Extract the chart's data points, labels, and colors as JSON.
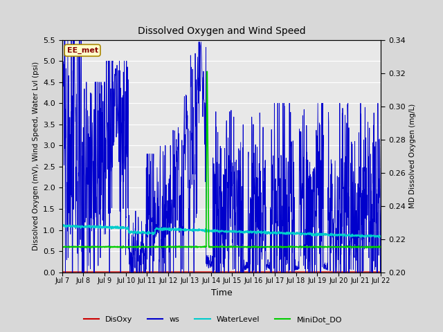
{
  "title": "Dissolved Oxygen and Wind Speed",
  "xlabel": "Time",
  "ylabel_left": "Dissolved Oxygen (mV), Wind Speed, Water Lvl (psi)",
  "ylabel_right": "MD Dissolved Oxygen (mg/L)",
  "ylim_left": [
    0.0,
    5.5
  ],
  "ylim_right": [
    0.2,
    0.34
  ],
  "annotation_text": "EE_met",
  "background_color": "#d8d8d8",
  "plot_bg_color": "#e8e8e8",
  "colors": {
    "DisOxy": "#cc0000",
    "ws": "#0000cc",
    "WaterLevel": "#00cccc",
    "MiniDot_DO": "#00cc00"
  },
  "n_points": 1440,
  "seed": 42
}
